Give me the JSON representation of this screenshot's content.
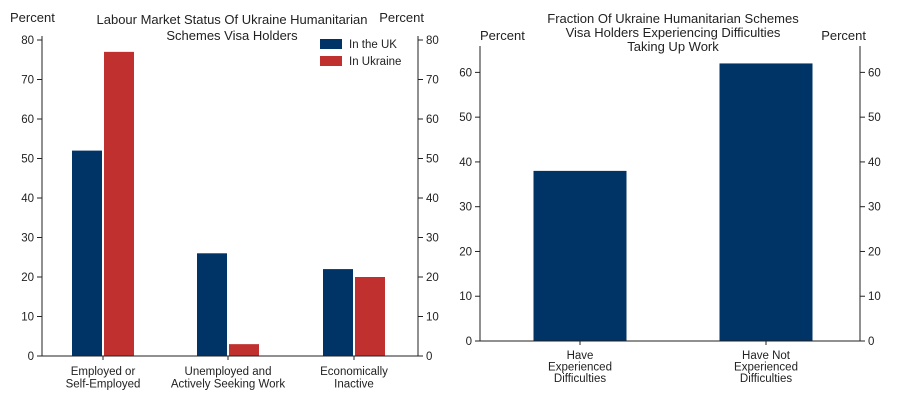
{
  "colors": {
    "uk": "#003366",
    "ukraine": "#c0302f",
    "axis": "#222222"
  },
  "chart_data": [
    {
      "type": "bar",
      "title_lines": [
        "Labour Market Status Of Ukraine Humanitarian",
        "Schemes Visa Holders"
      ],
      "left_unit": "Percent",
      "right_unit": "Percent",
      "categories": [
        [
          "Employed or",
          "Self-Employed"
        ],
        [
          "Unemployed and",
          "Actively Seeking Work"
        ],
        [
          "Economically",
          "Inactive"
        ]
      ],
      "series": [
        {
          "name": "In the UK",
          "color": "#003366",
          "values": [
            52,
            26,
            22
          ]
        },
        {
          "name": "In Ukraine",
          "color": "#c0302f",
          "values": [
            77,
            3,
            20
          ]
        }
      ],
      "ylim": [
        0,
        80
      ],
      "yticks": [
        0,
        10,
        20,
        30,
        40,
        50,
        60,
        70,
        80
      ],
      "legend_position": "top-right",
      "grid": false
    },
    {
      "type": "bar",
      "title_lines": [
        "Fraction Of Ukraine Humanitarian Schemes",
        "Visa Holders Experiencing Difficulties",
        "Taking Up Work"
      ],
      "left_unit": "Percent",
      "right_unit": "Percent",
      "categories": [
        [
          "Have",
          "Experienced",
          "Difficulties"
        ],
        [
          "Have Not",
          "Experienced",
          "Difficulties"
        ]
      ],
      "series": [
        {
          "color": "#003366",
          "values": [
            38,
            62
          ]
        }
      ],
      "ylim": [
        0,
        65
      ],
      "yticks": [
        0,
        10,
        20,
        30,
        40,
        50,
        60
      ],
      "grid": false
    }
  ]
}
